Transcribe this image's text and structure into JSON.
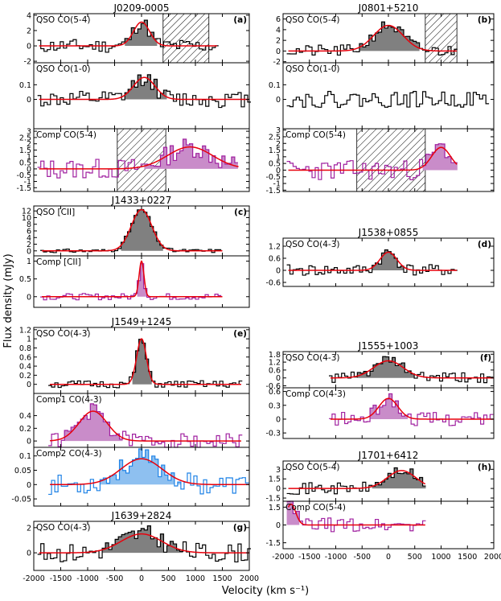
{
  "figure": {
    "ylabel": "Flux density (mJy)",
    "xlabel": "Velocity (km s$^{-1}$)",
    "xlabel_display": "Velocity (km s⁻¹)",
    "x_range": [
      -2000,
      2000
    ],
    "x_ticks": [
      -2000,
      -1500,
      -1000,
      -500,
      0,
      500,
      1000,
      1500,
      2000
    ]
  },
  "colors": {
    "qso": "#000000",
    "qso_fill": "#808080",
    "comp": "#a020a0",
    "comp_fill": "#c98cc9",
    "comp2": "#1e82e6",
    "comp2_fill": "#8ec0f0",
    "fit": "#e8000b"
  },
  "chart_data": [
    {
      "type": "line",
      "id": "a1",
      "title": "J0209-0005",
      "tag": "(a)",
      "label": "QSO CO(5-4)",
      "kind": "qso",
      "ylim": [
        -2.2,
        4.2
      ],
      "yticks": [
        -2,
        0,
        2,
        4
      ],
      "xdata": [
        -1900,
        1400
      ],
      "gauss": {
        "amp": 3.1,
        "mu": 0,
        "sigma": 150
      },
      "hatch": [
        400,
        1250
      ],
      "seed": 11,
      "noise": 0.9
    },
    {
      "type": "line",
      "id": "a2",
      "label": "QSO CO(1-0)",
      "kind": "qso",
      "ylim": [
        -0.2,
        0.25
      ],
      "yticks": [
        0.0,
        0.1
      ],
      "xdata": [
        -1900,
        2000
      ],
      "gauss": {
        "amp": 0.15,
        "mu": 50,
        "sigma": 200
      },
      "seed": 12,
      "noise": 0.055
    },
    {
      "type": "line",
      "id": "a3",
      "label": "Comp CO(5-4)",
      "kind": "comp",
      "ylim": [
        -1.8,
        3.2
      ],
      "yticks": [
        -1.5,
        -1.0,
        -0.5,
        0.0,
        0.5,
        1.0,
        1.5,
        2.0,
        2.5,
        3.0
      ],
      "xdata": [
        -1900,
        1800
      ],
      "gauss": {
        "amp": 1.75,
        "mu": 900,
        "sigma": 420
      },
      "hatch": [
        -450,
        450
      ],
      "seed": 13,
      "noise": 0.8
    },
    {
      "type": "line",
      "id": "b1",
      "title": "J0801+5210",
      "tag": "(b)",
      "label": "QSO CO(5-4)",
      "kind": "qso",
      "ylim": [
        -2.2,
        7.0
      ],
      "yticks": [
        -2,
        0,
        2,
        4,
        6
      ],
      "xdata": [
        -1900,
        1300
      ],
      "gauss": {
        "amp": 4.8,
        "mu": 0,
        "sigma": 280
      },
      "hatch": [
        700,
        1300
      ],
      "seed": 21,
      "noise": 1.1
    },
    {
      "type": "line",
      "id": "b2",
      "label": "QSO CO(1-0)",
      "kind": "qso",
      "ylim": [
        -0.2,
        0.25
      ],
      "yticks": [
        0.0,
        0.1
      ],
      "xdata": [
        -1900,
        1900
      ],
      "gauss": null,
      "seed": 22,
      "noise": 0.055
    },
    {
      "type": "line",
      "id": "b3",
      "label": "Comp CO(5-4)",
      "kind": "comp",
      "ylim": [
        -1.6,
        3.1
      ],
      "yticks": [
        -1.5,
        -1.0,
        -0.5,
        0.0,
        0.5,
        1.0,
        1.5,
        2.0,
        2.5,
        3.0
      ],
      "xdata": [
        -1900,
        1300
      ],
      "gauss": {
        "amp": 1.7,
        "mu": 1000,
        "sigma": 180
      },
      "hatch": [
        -600,
        700
      ],
      "seed": 23,
      "noise": 0.75
    },
    {
      "type": "line",
      "id": "c1",
      "title": "J1433+0227",
      "tag": "(c)",
      "label": "QSO [CII]",
      "kind": "qso",
      "ylim": [
        -1.5,
        13.5
      ],
      "yticks": [
        0,
        2,
        4,
        6,
        8,
        10,
        12
      ],
      "xdata": [
        -1850,
        1500
      ],
      "gauss": {
        "amp": 12.4,
        "mu": 0,
        "sigma": 190
      },
      "seed": 31,
      "noise": 0.55
    },
    {
      "type": "line",
      "id": "c2",
      "label": "Comp [CII]",
      "kind": "comp",
      "ylim": [
        -0.3,
        1.15
      ],
      "yticks": [
        -0.0,
        0.5,
        1.0
      ],
      "xdata": [
        -1850,
        1500
      ],
      "gauss": {
        "amp": 1.0,
        "mu": 0,
        "sigma": 45
      },
      "seed": 32,
      "noise": 0.09
    },
    {
      "type": "line",
      "id": "d1",
      "title": "J1538+0855",
      "tag": "(d)",
      "label": "QSO CO(4-3)",
      "kind": "qso",
      "ylim": [
        -0.8,
        1.6
      ],
      "yticks": [
        -0.6,
        0.0,
        0.6,
        1.2
      ],
      "xdata": [
        -1900,
        1300
      ],
      "gauss": {
        "amp": 0.9,
        "mu": 0,
        "sigma": 160
      },
      "seed": 41,
      "noise": 0.28
    },
    {
      "type": "line",
      "id": "e1",
      "title": "J1549+1245",
      "tag": "(e)",
      "label": "QSO CO(4-3)",
      "kind": "qso",
      "ylim": [
        -0.2,
        1.25
      ],
      "yticks": [
        0.0,
        0.2,
        0.4,
        0.6,
        0.8,
        1.0,
        1.2
      ],
      "xdata": [
        -1700,
        1850
      ],
      "gauss": {
        "amp": 1.0,
        "mu": 0,
        "sigma": 90
      },
      "seed": 51,
      "noise": 0.08
    },
    {
      "type": "line",
      "id": "e2",
      "label": "Comp1 CO(4-3)",
      "kind": "comp",
      "ylim": [
        -0.1,
        0.75
      ],
      "yticks": [
        0.0,
        0.2,
        0.4
      ],
      "xdata": [
        -1700,
        1850
      ],
      "gauss": {
        "amp": 0.47,
        "mu": -900,
        "sigma": 260
      },
      "seed": 52,
      "noise": 0.12
    },
    {
      "type": "line",
      "id": "e3",
      "label": "Comp2 CO(4-3)",
      "kind": "comp2",
      "ylim": [
        -0.075,
        0.13
      ],
      "yticks": [
        -0.05,
        0.0,
        0.05,
        0.1
      ],
      "xdata": [
        -1700,
        2000
      ],
      "gauss": {
        "amp": 0.09,
        "mu": 0,
        "sigma": 380
      },
      "seed": 53,
      "noise": 0.035
    },
    {
      "type": "line",
      "id": "f1",
      "title": "J1555+1003",
      "tag": "(f)",
      "label": "QSO CO(4-3)",
      "kind": "qso",
      "ylim": [
        -0.75,
        2.0
      ],
      "yticks": [
        -0.6,
        0.0,
        0.6,
        1.2,
        1.8
      ],
      "xdata": [
        -1100,
        2000
      ],
      "gauss": {
        "amp": 1.3,
        "mu": 0,
        "sigma": 280
      },
      "seed": 61,
      "noise": 0.4
    },
    {
      "type": "line",
      "id": "f2",
      "label": "Comp CO(4-3)",
      "kind": "comp",
      "ylim": [
        -0.42,
        0.68
      ],
      "yticks": [
        -0.3,
        0.0,
        0.3,
        0.6
      ],
      "xdata": [
        -1100,
        2000
      ],
      "gauss": {
        "amp": 0.45,
        "mu": 0,
        "sigma": 180
      },
      "seed": 62,
      "noise": 0.15
    },
    {
      "type": "line",
      "id": "h1",
      "title": "J1701+6412",
      "tag": "(h)",
      "label": "QSO CO(5-4)",
      "kind": "qso",
      "ylim": [
        -2.0,
        4.3
      ],
      "yticks": [
        -1.5,
        0.0,
        1.5,
        3.0
      ],
      "xdata": [
        -1900,
        700
      ],
      "gauss": {
        "amp": 2.8,
        "mu": 250,
        "sigma": 270
      },
      "seed": 71,
      "noise": 0.9
    },
    {
      "type": "line",
      "id": "h2",
      "label": "Comp CO(5-4)",
      "kind": "comp",
      "ylim": [
        -2.0,
        2.0
      ],
      "yticks": [
        -1.5,
        0.0,
        1.5
      ],
      "xdata": [
        -1900,
        700
      ],
      "gauss": {
        "amp": 1.75,
        "mu": -1850,
        "sigma": 90
      },
      "seed": 72,
      "noise": 0.6
    },
    {
      "type": "line",
      "id": "g1",
      "title": "J1639+2824",
      "tag": "(g)",
      "label": "QSO CO(4-3)",
      "kind": "qso",
      "ylim": [
        -1.4,
        2.5
      ],
      "yticks": [
        0,
        2
      ],
      "xdata": [
        -1900,
        2000
      ],
      "gauss": {
        "amp": 1.5,
        "mu": 0,
        "sigma": 380
      },
      "seed": 81,
      "noise": 0.75
    }
  ]
}
